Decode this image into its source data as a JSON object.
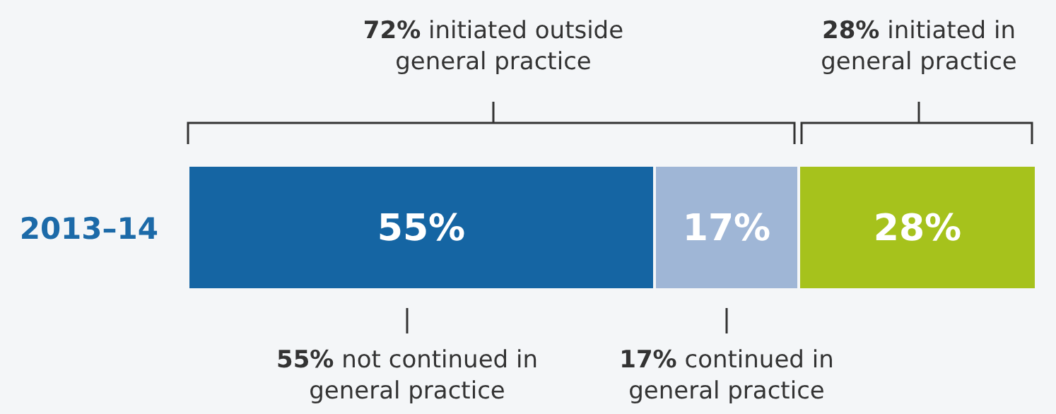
{
  "chart_data": {
    "type": "bar",
    "orientation": "horizontal",
    "stacked": true,
    "categories": [
      "2013–14"
    ],
    "series": [
      {
        "color": "#1565a3",
        "values": [
          55
        ],
        "value_labels": [
          "55%"
        ]
      },
      {
        "color": "#9fb6d6",
        "values": [
          17
        ],
        "value_labels": [
          "17%"
        ]
      },
      {
        "color": "#a6c21c",
        "values": [
          28
        ],
        "value_labels": [
          "28%"
        ]
      }
    ],
    "annotations": [
      "72% initiated outside\ngeneral practice",
      "28% initiated in\ngeneral practice",
      "55% not continued in\ngeneral practice",
      "17% continued in\ngeneral practice"
    ]
  }
}
